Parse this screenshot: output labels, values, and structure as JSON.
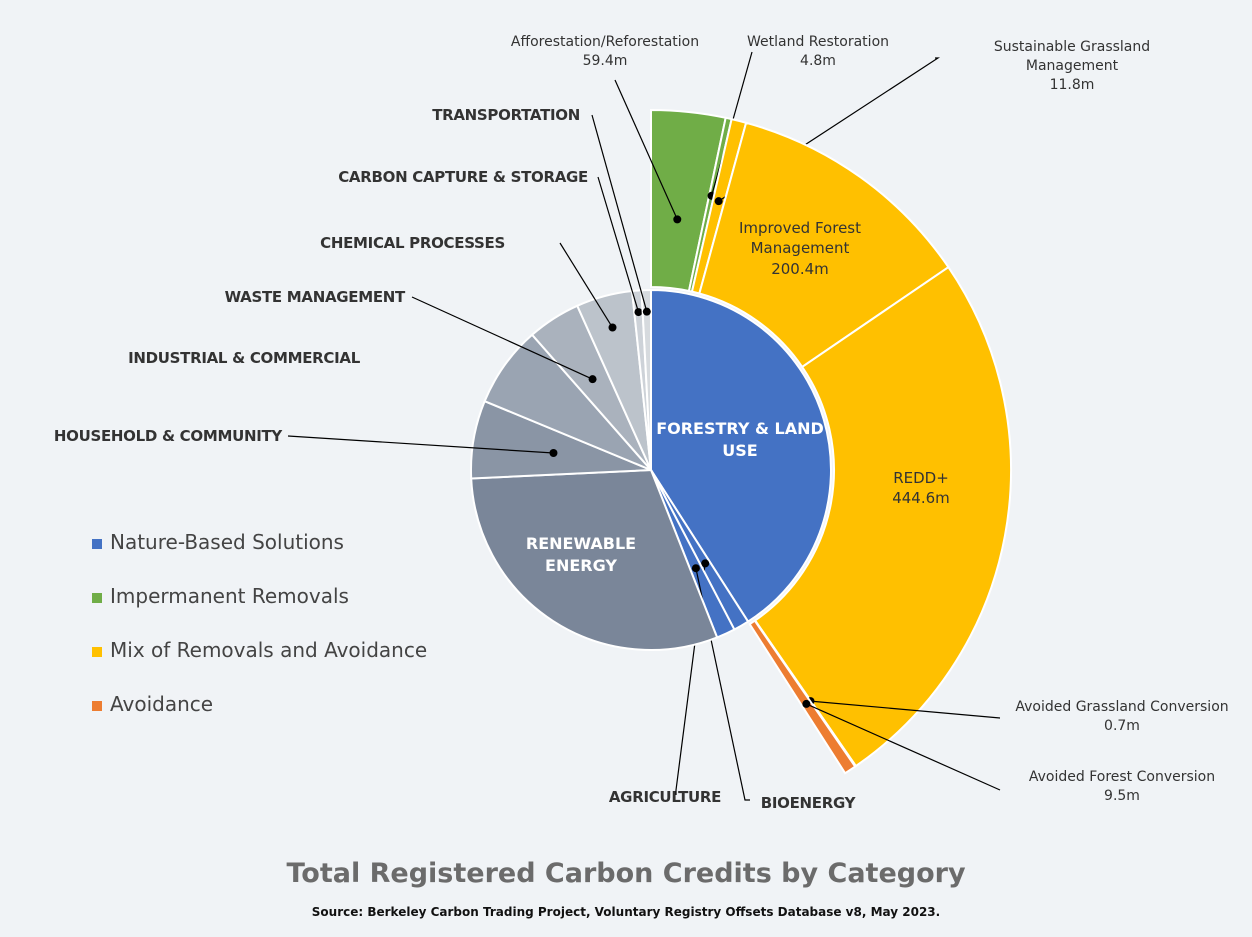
{
  "chart_data": {
    "type": "sunburst",
    "title": "Total Registered Carbon Credits by Category",
    "source": "Source: Berkeley Carbon Trading Project, Voluntary Registry Offsets Database v8, May 2023.",
    "inner": {
      "categories": [
        "FORESTRY & LAND USE",
        "AGRICULTURE",
        "BIOENERGY",
        "RENEWABLE ENERGY",
        "HOUSEHOLD & COMMUNITY",
        "INDUSTRIAL & COMMERCIAL",
        "WASTE MANAGEMENT",
        "CHEMICAL PROCESSES",
        "CARBON CAPTURE & STORAGE",
        "TRANSPORTATION"
      ],
      "values": [
        731.2,
        25,
        30,
        540,
        125,
        130,
        85,
        90,
        15,
        15
      ],
      "colors": [
        "#4472c4",
        "#4472c4",
        "#4472c4",
        "#7a8699",
        "#8a95a5",
        "#9aa4b2",
        "#aab2bd",
        "#bcc3cb",
        "#cdd2d8",
        "#d6dade"
      ]
    },
    "outer": {
      "categories": [
        "Afforestation/Reforestation",
        "Wetland Restoration",
        "Sustainable Grassland Management",
        "Improved Forest Management",
        "REDD+",
        "Avoided Grassland Conversion",
        "Avoided Forest Conversion"
      ],
      "values": [
        59.4,
        4.8,
        11.8,
        200.4,
        444.6,
        0.7,
        9.5
      ],
      "value_labels": [
        "59.4m",
        "4.8m",
        "11.8m",
        "200.4m",
        "444.6m",
        "0.7m",
        "9.5m"
      ],
      "colors": [
        "#70ad47",
        "#70ad47",
        "#ffc000",
        "#ffc000",
        "#ffc000",
        "#ed7d31",
        "#ed7d31"
      ]
    },
    "legend": {
      "names": [
        "Nature-Based Solutions",
        "Impermanent Removals",
        "Mix of Removals and Avoidance",
        "Avoidance"
      ],
      "colors": [
        "#4472c4",
        "#70ad47",
        "#ffc000",
        "#ed7d31"
      ]
    }
  }
}
